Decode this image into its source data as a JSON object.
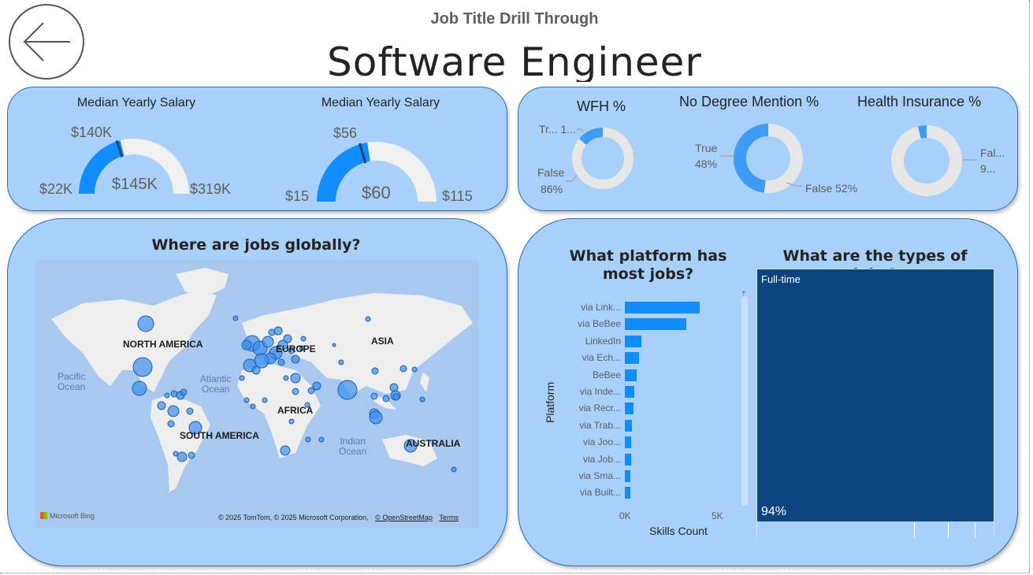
{
  "header": {
    "subtitle": "Job Title Drill Through",
    "title": "Software Engineer"
  },
  "gauges": [
    {
      "title": "Median Yearly Salary",
      "min": "$22K",
      "max": "$319K",
      "value": "$145K",
      "target": "$140K",
      "fill_fraction": 0.42,
      "target_fraction": 0.4
    },
    {
      "title": "Median Yearly Salary",
      "min": "$15",
      "max": "$115",
      "value": "$60",
      "target": "$56",
      "fill_fraction": 0.45,
      "target_fraction": 0.41
    }
  ],
  "donuts": [
    {
      "title": "WFH %",
      "labels": [
        "Tr... 1...",
        "False",
        "86%"
      ],
      "values": {
        "true": 14,
        "false": 86
      }
    },
    {
      "title": "No Degree Mention %",
      "labels": [
        "True",
        "48%",
        "False 52%"
      ],
      "values": {
        "true": 48,
        "false": 52
      }
    },
    {
      "title": "Health Insurance %",
      "labels": [
        "Fal...",
        "9..."
      ],
      "values": {
        "true": 4,
        "false": 96
      }
    }
  ],
  "map": {
    "title": "Where are jobs globally?",
    "continents": [
      "NORTH AMERICA",
      "EUROPE",
      "ASIA",
      "AFRICA",
      "SOUTH AMERICA",
      "AUSTRALIA"
    ],
    "oceans": [
      "Pacific\nOcean",
      "Atlantic\nOcean",
      "Indian\nOcean"
    ],
    "provider": "Microsoft Bing",
    "credit": "© 2025 TomTom, © 2025 Microsoft Corporation,",
    "credit_link": "© OpenStreetMap",
    "terms": "Terms"
  },
  "platform_chart": {
    "title": "What platform has most jobs?",
    "y_axis_title": "Platform",
    "x_axis_title": "Skills Count",
    "x_ticks": [
      "0K",
      "5K"
    ]
  },
  "chart_data": {
    "type": "bar",
    "orientation": "horizontal",
    "categories": [
      "via Link...",
      "via BeBee",
      "LinkedIn",
      "via Ech...",
      "BeBee",
      "via Inde...",
      "via Recr...",
      "via Trab...",
      "via Joo...",
      "via Job...",
      "via Sma...",
      "via Built..."
    ],
    "values": [
      4500,
      3700,
      1000,
      850,
      700,
      550,
      500,
      450,
      400,
      400,
      350,
      350
    ],
    "xlabel": "Skills Count",
    "ylabel": "Platform",
    "xlim": [
      0,
      5000
    ],
    "color": "#118dff"
  },
  "job_types": {
    "title": "What are the types of jobs?",
    "main_label": "Full-time",
    "main_pct": "94%",
    "main_color": "#0c457e"
  },
  "colors": {
    "card_bg": "#a7d0fb",
    "gauge_fill": "#118dff",
    "gauge_track": "#f0f0f0",
    "gauge_target": "#0c457e",
    "donut_fill": "#3f9bf5",
    "donut_track": "#e6e6e6"
  }
}
